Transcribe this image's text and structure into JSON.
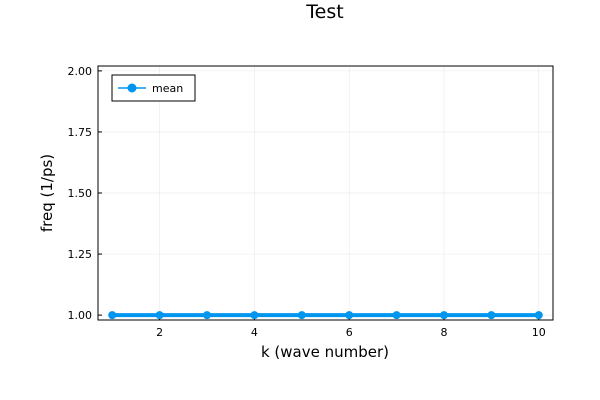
{
  "chart_data": {
    "type": "line",
    "title": "Test",
    "xlabel": "k (wave number)",
    "ylabel": "freq (1/ps)",
    "xlim": [
      0.7,
      10.3
    ],
    "ylim": [
      0.98,
      2.02
    ],
    "xticks": [
      2,
      4,
      6,
      8,
      10
    ],
    "xtick_labels": [
      "2",
      "4",
      "6",
      "8",
      "10"
    ],
    "yticks": [
      1.0,
      1.25,
      1.5,
      1.75,
      2.0
    ],
    "ytick_labels": [
      "1.00",
      "1.25",
      "1.50",
      "1.75",
      "2.00"
    ],
    "grid": true,
    "legend_position": "top-left",
    "series": [
      {
        "name": "mean",
        "color": "#0096f0",
        "marker": "circle",
        "x": [
          1,
          2,
          3,
          4,
          5,
          6,
          7,
          8,
          9,
          10
        ],
        "y": [
          1.0,
          1.0,
          1.0,
          1.0,
          1.0,
          1.0,
          1.0,
          1.0,
          1.0,
          1.0
        ]
      }
    ]
  }
}
